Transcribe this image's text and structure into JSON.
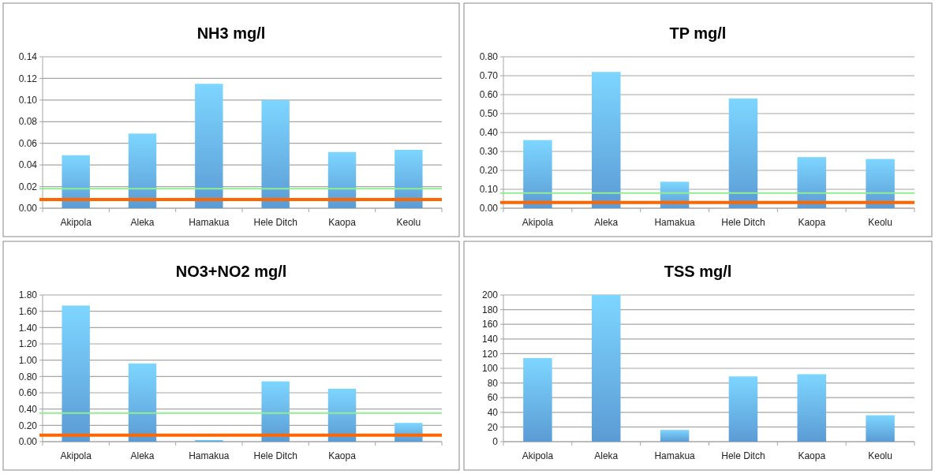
{
  "chart_data": [
    {
      "type": "bar",
      "title": "NH3 mg/l",
      "categories": [
        "Akipola",
        "Aleka",
        "Hamakua",
        "Hele Ditch",
        "Kaopa",
        "Keolu"
      ],
      "values": [
        0.049,
        0.069,
        0.115,
        0.1,
        0.052,
        0.054
      ],
      "color": "#5b9bd5",
      "ylim": [
        0,
        0.14
      ],
      "yticks": [
        {
          "value": 0,
          "label": "0.00"
        },
        {
          "value": 0.02,
          "label": "0.02"
        },
        {
          "value": 0.04,
          "label": "0.04"
        },
        {
          "value": 0.06,
          "label": "0.06"
        },
        {
          "value": 0.08,
          "label": "0.08"
        },
        {
          "value": 0.1,
          "label": "0.10"
        },
        {
          "value": 0.12,
          "label": "0.12"
        },
        {
          "value": 0.14,
          "label": "0.14"
        }
      ],
      "grid": "y",
      "ref_lines": [
        {
          "axis": "y",
          "value": 0.018,
          "color": "#90ee90"
        },
        {
          "axis": "y",
          "value": 0.008,
          "color": "#ff6600"
        }
      ]
    },
    {
      "type": "bar",
      "title": "TP mg/l",
      "categories": [
        "Akipola",
        "Aleka",
        "Hamakua",
        "Hele Ditch",
        "Kaopa",
        "Keolu"
      ],
      "values": [
        0.36,
        0.72,
        0.14,
        0.58,
        0.27,
        0.26
      ],
      "color": "#5b9bd5",
      "ylim": [
        0,
        0.8
      ],
      "yticks": [
        {
          "value": 0,
          "label": "0.00"
        },
        {
          "value": 0.1,
          "label": "0.10"
        },
        {
          "value": 0.2,
          "label": "0.20"
        },
        {
          "value": 0.3,
          "label": "0.30"
        },
        {
          "value": 0.4,
          "label": "0.40"
        },
        {
          "value": 0.5,
          "label": "0.50"
        },
        {
          "value": 0.6,
          "label": "0.60"
        },
        {
          "value": 0.7,
          "label": "0.70"
        },
        {
          "value": 0.8,
          "label": "0.80"
        }
      ],
      "grid": "y",
      "ref_lines": [
        {
          "axis": "y",
          "value": 0.08,
          "color": "#90ee90"
        },
        {
          "axis": "y",
          "value": 0.03,
          "color": "#ff6600"
        }
      ]
    },
    {
      "type": "bar",
      "title": "NO3+NO2 mg/l",
      "categories": [
        "Akipola",
        "Aleka",
        "Hamakua",
        "Hele Ditch",
        "Kaopa",
        null
      ],
      "values": [
        1.67,
        0.96,
        0.02,
        0.74,
        0.65,
        0.23
      ],
      "color": "#5b9bd5",
      "ylim": [
        0,
        1.8
      ],
      "yticks": [
        {
          "value": 0,
          "label": "0.00"
        },
        {
          "value": 0.2,
          "label": "0.20"
        },
        {
          "value": 0.4,
          "label": "0.40"
        },
        {
          "value": 0.6,
          "label": "0.60"
        },
        {
          "value": 0.8,
          "label": "0.80"
        },
        {
          "value": 1,
          "label": "1.00"
        },
        {
          "value": 1.2,
          "label": "1.20"
        },
        {
          "value": 1.4,
          "label": "1.40"
        },
        {
          "value": 1.6,
          "label": "1.60"
        },
        {
          "value": 1.8,
          "label": "1.80"
        }
      ],
      "grid": "y",
      "ref_lines": [
        {
          "axis": "y",
          "value": 0.35,
          "color": "#90ee90"
        },
        {
          "axis": "y",
          "value": 0.08,
          "color": "#ff6600"
        }
      ]
    },
    {
      "type": "bar",
      "title": "TSS mg/l",
      "categories": [
        "Akipola",
        "Aleka",
        "Hamakua",
        "Hele Ditch",
        "Kaopa",
        "Keolu"
      ],
      "values": [
        114,
        200,
        16,
        89,
        92,
        36
      ],
      "color": "#5b9bd5",
      "ylim": [
        0,
        200
      ],
      "yticks": [
        0,
        20,
        40,
        60,
        80,
        100,
        120,
        140,
        160,
        180,
        200
      ],
      "grid": "y"
    }
  ]
}
